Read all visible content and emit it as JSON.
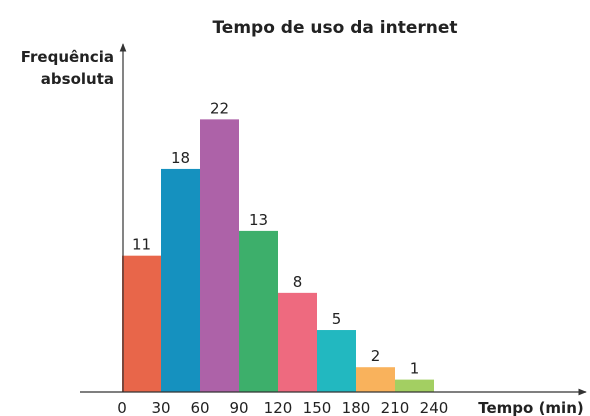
{
  "chart_data": {
    "type": "histogram",
    "title": "Tempo de uso da internet",
    "y_label": [
      "Frequência",
      "absoluta"
    ],
    "x_label": "Tempo (min)",
    "bins": [
      0,
      30,
      60,
      90,
      120,
      150,
      180,
      210,
      240
    ],
    "values": [
      11,
      18,
      22,
      13,
      8,
      5,
      2,
      1
    ],
    "colors": [
      "#e8664a",
      "#1591bf",
      "#ad62a8",
      "#3daf6b",
      "#ee6a7f",
      "#22b8c0",
      "#f9b25c",
      "#a3cf62"
    ],
    "xlim": [
      0,
      240
    ],
    "xticks": [
      0,
      30,
      60,
      90,
      120,
      150,
      180,
      210,
      240
    ],
    "ylim": [
      0,
      28
    ],
    "grid": false
  }
}
